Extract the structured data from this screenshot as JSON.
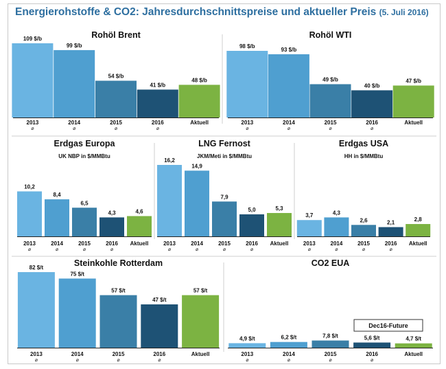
{
  "page": {
    "title": "Energierohstoffe & CO2: Jahresdurchschnittspreise und aktueller Preis",
    "date": "(5. Juli 2016)"
  },
  "palette": {
    "2013": "#6ab4e2",
    "2014": "#4f9fd0",
    "2015": "#3a7fa7",
    "2016": "#1e5275",
    "Aktuell": "#7cb342"
  },
  "chart_data": [
    {
      "type": "bar",
      "title": "Rohöl Brent",
      "subtitle": "",
      "categories": [
        "2013",
        "2014",
        "2015",
        "2016",
        "Aktuell"
      ],
      "average_mark": [
        "⌀",
        "⌀",
        "⌀",
        "⌀",
        ""
      ],
      "values": [
        109,
        99,
        54,
        41,
        48
      ],
      "labels": [
        "109 $/b",
        "99 $/b",
        "54 $/b",
        "41 $/b",
        "48 $/b"
      ],
      "unit": "$/b",
      "ylim": [
        0,
        109
      ]
    },
    {
      "type": "bar",
      "title": "Rohöl WTI",
      "subtitle": "",
      "categories": [
        "2013",
        "2014",
        "2015",
        "2016",
        "Aktuell"
      ],
      "average_mark": [
        "⌀",
        "⌀",
        "⌀",
        "⌀",
        ""
      ],
      "values": [
        98,
        93,
        49,
        40,
        47
      ],
      "labels": [
        "98 $/b",
        "93 $/b",
        "49 $/b",
        "40 $/b",
        "47 $/b"
      ],
      "unit": "$/b",
      "ylim": [
        0,
        98
      ]
    },
    {
      "type": "bar",
      "title": "Erdgas Europa",
      "subtitle": "UK NBP in $/MMBtu",
      "categories": [
        "2013",
        "2014",
        "2015",
        "2016",
        "Aktuell"
      ],
      "average_mark": [
        "⌀",
        "⌀",
        "⌀",
        "⌀",
        ""
      ],
      "values": [
        10.2,
        8.4,
        6.5,
        4.3,
        4.6
      ],
      "labels": [
        "10,2",
        "8,4",
        "6,5",
        "4,3",
        "4,6"
      ],
      "unit": "$/MMBtu",
      "ylim": [
        0,
        16.2
      ]
    },
    {
      "type": "bar",
      "title": "LNG Fernost",
      "subtitle": "JKM/Meti in $/MMBtu",
      "categories": [
        "2013",
        "2014",
        "2015",
        "2016",
        "Aktuell"
      ],
      "average_mark": [
        "⌀",
        "⌀",
        "⌀",
        "⌀",
        ""
      ],
      "values": [
        16.2,
        14.9,
        7.9,
        5.0,
        5.3
      ],
      "labels": [
        "16,2",
        "14,9",
        "7,9",
        "5,0",
        "5,3"
      ],
      "unit": "$/MMBtu",
      "ylim": [
        0,
        16.2
      ]
    },
    {
      "type": "bar",
      "title": "Erdgas USA",
      "subtitle": "HH in $/MMBtu",
      "categories": [
        "2013",
        "2014",
        "2015",
        "2016",
        "Aktuell"
      ],
      "average_mark": [
        "⌀",
        "⌀",
        "⌀",
        "⌀",
        ""
      ],
      "values": [
        3.7,
        4.3,
        2.6,
        2.1,
        2.8
      ],
      "labels": [
        "3,7",
        "4,3",
        "2,6",
        "2,1",
        "2,8"
      ],
      "unit": "$/MMBtu",
      "ylim": [
        0,
        16.2
      ]
    },
    {
      "type": "bar",
      "title": "Steinkohle Rotterdam",
      "subtitle": "",
      "categories": [
        "2013",
        "2014",
        "2015",
        "2016",
        "Aktuell"
      ],
      "average_mark": [
        "⌀",
        "⌀",
        "⌀",
        "⌀",
        ""
      ],
      "values": [
        82,
        75,
        57,
        47,
        57
      ],
      "labels": [
        "82 $/t",
        "75 $/t",
        "57 $/t",
        "47 $/t",
        "57 $/t"
      ],
      "unit": "$/t",
      "ylim": [
        0,
        82
      ]
    },
    {
      "type": "bar",
      "title": "CO2 EUA",
      "subtitle": "",
      "note": "Dec16-Future",
      "categories": [
        "2013",
        "2014",
        "2015",
        "2016",
        "Aktuell"
      ],
      "average_mark": [
        "⌀",
        "⌀",
        "⌀",
        "⌀",
        ""
      ],
      "values": [
        4.9,
        6.2,
        7.8,
        5.6,
        4.7
      ],
      "labels": [
        "4,9 $/t",
        "6,2 $/t",
        "7,8 $/t",
        "5,6 $/t",
        "4,7 $/t"
      ],
      "unit": "$/t",
      "ylim": [
        0,
        82
      ]
    }
  ]
}
